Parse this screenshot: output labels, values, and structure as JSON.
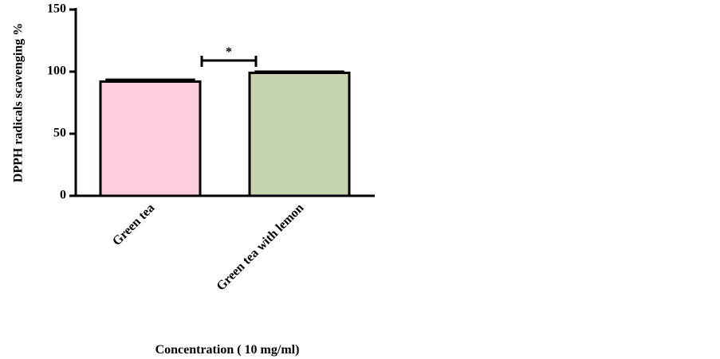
{
  "chart_data": {
    "type": "bar",
    "categories": [
      "Green tea",
      "Green tea with lemon"
    ],
    "values": [
      92,
      99
    ],
    "errors": [
      1.5,
      1
    ],
    "colors": [
      "#ffcce0",
      "#c7d5ae"
    ],
    "ylim": [
      0,
      150
    ],
    "yticks": [
      0,
      50,
      100,
      150
    ],
    "ylabel": "DPPH radicals scavenging %",
    "xlabel": "Concentration ( 10 mg/ml)",
    "annotation": "*"
  }
}
